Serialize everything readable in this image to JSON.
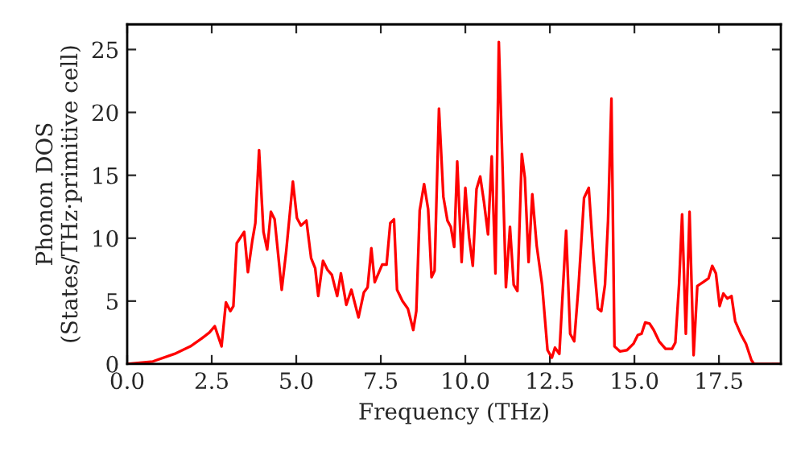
{
  "chart_data": {
    "type": "line",
    "xlabel": "Frequency (THz)",
    "ylabel": "Phonon DOS\n(States/THz·primitive cell)",
    "xlim": [
      0,
      19.33
    ],
    "ylim": [
      0,
      27
    ],
    "xticks": [
      {
        "value": 0,
        "label": "0.0"
      },
      2.5,
      {
        "value": 5,
        "label": "5.0"
      },
      7.5,
      {
        "value": 10,
        "label": "10.0"
      },
      12.5,
      {
        "value": 15,
        "label": "15.0"
      },
      17.5
    ],
    "yticks": [
      0,
      5,
      10,
      15,
      20,
      25
    ],
    "grid": false,
    "marker": "none",
    "line_style": "solid",
    "x": [
      0.0,
      0.76,
      1.4,
      1.87,
      2.19,
      2.43,
      2.59,
      2.79,
      2.92,
      3.05,
      3.14,
      3.24,
      3.46,
      3.57,
      3.7,
      3.79,
      3.9,
      4.03,
      4.14,
      4.25,
      4.36,
      4.57,
      4.7,
      4.9,
      5.02,
      5.14,
      5.3,
      5.44,
      5.56,
      5.65,
      5.79,
      5.92,
      6.05,
      6.21,
      6.32,
      6.48,
      6.63,
      6.84,
      7.0,
      7.11,
      7.22,
      7.32,
      7.54,
      7.67,
      7.78,
      7.89,
      7.98,
      8.14,
      8.3,
      8.46,
      8.55,
      8.65,
      8.78,
      8.9,
      9.0,
      9.09,
      9.22,
      9.35,
      9.47,
      9.57,
      9.67,
      9.76,
      9.89,
      10.0,
      10.11,
      10.22,
      10.33,
      10.44,
      10.55,
      10.67,
      10.78,
      10.89,
      10.99,
      11.1,
      11.2,
      11.32,
      11.43,
      11.54,
      11.67,
      11.76,
      11.87,
      11.98,
      12.11,
      12.27,
      12.43,
      12.56,
      12.65,
      12.78,
      12.98,
      13.1,
      13.22,
      13.35,
      13.51,
      13.65,
      13.79,
      13.92,
      14.02,
      14.13,
      14.22,
      14.32,
      14.41,
      14.57,
      14.78,
      14.97,
      15.1,
      15.21,
      15.32,
      15.45,
      15.57,
      15.73,
      15.92,
      16.11,
      16.21,
      16.32,
      16.41,
      16.52,
      16.63,
      16.75,
      16.86,
      17.03,
      17.19,
      17.3,
      17.41,
      17.52,
      17.63,
      17.75,
      17.87,
      17.98,
      18.14,
      18.3,
      18.46,
      18.54,
      19.33
    ],
    "series": [
      {
        "color": "#ff0000",
        "values": [
          0.0,
          0.2,
          0.8,
          1.4,
          2.0,
          2.5,
          3.0,
          1.4,
          4.9,
          4.2,
          4.6,
          9.6,
          10.5,
          7.3,
          9.8,
          11.2,
          17.0,
          10.5,
          9.1,
          12.1,
          11.5,
          5.9,
          8.9,
          14.5,
          11.6,
          11.0,
          11.4,
          8.4,
          7.6,
          5.4,
          8.2,
          7.5,
          7.1,
          5.4,
          7.2,
          4.7,
          5.9,
          3.7,
          5.7,
          6.1,
          9.2,
          6.5,
          7.9,
          7.9,
          11.2,
          11.5,
          5.9,
          5.0,
          4.4,
          2.7,
          4.2,
          12.2,
          14.3,
          12.3,
          6.9,
          7.4,
          20.3,
          13.3,
          11.4,
          10.9,
          9.3,
          16.1,
          8.1,
          14.0,
          10.1,
          7.8,
          13.9,
          14.9,
          12.9,
          10.3,
          16.5,
          7.2,
          25.6,
          15.7,
          6.1,
          10.9,
          6.3,
          5.8,
          16.7,
          14.8,
          8.1,
          13.5,
          9.4,
          6.3,
          1.1,
          0.5,
          1.3,
          0.8,
          10.6,
          2.4,
          1.8,
          6.3,
          13.2,
          14.0,
          8.4,
          4.4,
          4.2,
          6.3,
          11.4,
          21.1,
          1.4,
          1.0,
          1.1,
          1.6,
          2.3,
          2.4,
          3.3,
          3.2,
          2.7,
          1.8,
          1.2,
          1.2,
          1.7,
          6.3,
          11.9,
          2.4,
          12.1,
          0.7,
          6.2,
          6.5,
          6.8,
          7.8,
          7.2,
          4.6,
          5.6,
          5.2,
          5.4,
          3.4,
          2.4,
          1.6,
          0.3,
          0.0,
          0.0
        ]
      }
    ]
  }
}
